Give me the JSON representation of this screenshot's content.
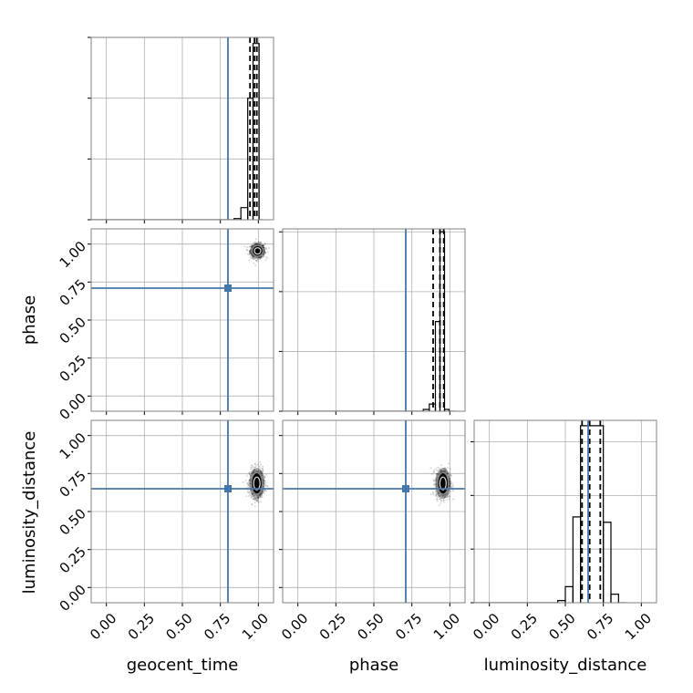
{
  "chart_data": {
    "type": "corner",
    "parameters": [
      "geocent_time",
      "phase",
      "luminosity_distance"
    ],
    "truths": [
      0.8,
      0.71,
      0.65
    ],
    "truth_color": "#4477aa",
    "contour_color": "#000000",
    "axis_range": [
      -0.1,
      1.1
    ],
    "tick_values": [
      0.0,
      0.25,
      0.5,
      0.75,
      1.0
    ],
    "tick_labels": [
      "0.00",
      "0.25",
      "0.50",
      "0.75",
      "1.00"
    ],
    "grid": true,
    "diagonal": [
      {
        "parameter": "geocent_time",
        "bin_edges": [
          0.84,
          0.885,
          0.93,
          0.965,
          1.005,
          1.03
        ],
        "counts": [
          2,
          20,
          200,
          290,
          0
        ],
        "ylim": [
          0,
          300
        ],
        "quantiles": [
          0.945,
          0.975,
          0.99
        ],
        "ytick_values": [
          0,
          100,
          200,
          300
        ],
        "ytick_labels_shown": false
      },
      {
        "parameter": "phase",
        "bin_edges": [
          0.825,
          0.865,
          0.905,
          0.935,
          0.965,
          0.995,
          1.035
        ],
        "counts": [
          3,
          12,
          150,
          300,
          3,
          0
        ],
        "ylim": [
          0,
          305
        ],
        "quantiles": [
          0.89,
          0.935,
          0.96
        ],
        "ytick_values": [
          0,
          100,
          200,
          300
        ],
        "ytick_labels_shown": false
      },
      {
        "parameter": "luminosity_distance",
        "bin_edges": [
          0.45,
          0.5,
          0.55,
          0.6,
          0.75,
          0.8,
          0.85,
          0.9
        ],
        "counts": [
          2,
          15,
          80,
          165,
          75,
          8,
          0
        ],
        "ylim": [
          0,
          170
        ],
        "quantiles": [
          0.61,
          0.66,
          0.73
        ],
        "ytick_values": [
          0,
          50,
          100,
          150
        ],
        "ytick_labels_shown": false
      }
    ],
    "joint": [
      {
        "x_parameter": "geocent_time",
        "y_parameter": "phase",
        "center": [
          0.995,
          0.955
        ],
        "spread": [
          0.03,
          0.03
        ]
      },
      {
        "x_parameter": "geocent_time",
        "y_parameter": "luminosity_distance",
        "center": [
          0.99,
          0.685
        ],
        "spread": [
          0.03,
          0.06
        ]
      },
      {
        "x_parameter": "phase",
        "y_parameter": "luminosity_distance",
        "center": [
          0.955,
          0.685
        ],
        "spread": [
          0.03,
          0.06
        ]
      }
    ]
  }
}
